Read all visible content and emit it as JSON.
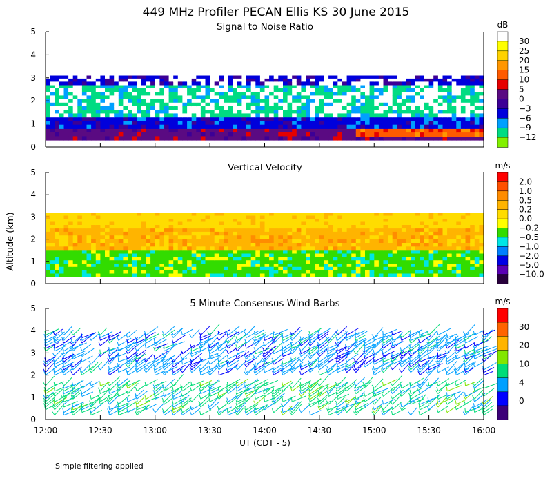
{
  "title": "449 MHz Profiler PECAN Ellis KS 30 June 2015",
  "ylabel": "Altitude (km)",
  "xlabel": "UT  (CDT - 5)",
  "footer": "Simple filtering applied",
  "x_ticks": [
    "12:00",
    "12:30",
    "13:00",
    "13:30",
    "14:00",
    "14:30",
    "15:00",
    "15:30",
    "16:00"
  ],
  "y_ticks": [
    "0",
    "1",
    "2",
    "3",
    "4",
    "5"
  ],
  "chart_data": [
    {
      "type": "heatmap",
      "title": "Signal to Noise Ratio",
      "x_range": [
        "12:00",
        "16:00"
      ],
      "ylim": [
        0,
        5
      ],
      "colorbar": {
        "unit": "dB",
        "labels": [
          "30",
          "25",
          "20",
          "15",
          "10",
          "5",
          "0",
          "−3",
          "−6",
          "−9",
          "−12"
        ],
        "colors": [
          "#ffffff",
          "#ffff00",
          "#ffd200",
          "#ff9600",
          "#ff5a00",
          "#e60000",
          "#5a0a82",
          "#3c0096",
          "#0000dc",
          "#00a0ff",
          "#00dc82",
          "#82f000"
        ]
      },
      "layers": [
        {
          "alt_km": [
            0.3,
            0.8
          ],
          "value_db": "0 to 5",
          "color": "#5a0a82"
        },
        {
          "alt_km": [
            0.45,
            0.8
          ],
          "from": "14:50",
          "to": "16:00",
          "value_db": "10 to 20",
          "color": "#ff5a00"
        },
        {
          "alt_km": [
            0.8,
            1.3
          ],
          "value_db": "-3 to 0",
          "color": "#0000dc"
        },
        {
          "alt_km": [
            1.3,
            2.7
          ],
          "value_db": "-12 to 30",
          "color": "#00dc82"
        },
        {
          "alt_km": [
            2.7,
            3.1
          ],
          "value_db": "-3 to 0",
          "color": "#0000dc"
        }
      ]
    },
    {
      "type": "heatmap",
      "title": "Vertical Velocity",
      "x_range": [
        "12:00",
        "16:00"
      ],
      "ylim": [
        0,
        5
      ],
      "colorbar": {
        "unit": "m/s",
        "labels": [
          "2.0",
          "1.0",
          "0.5",
          "0.2",
          "0.0",
          "−0.2",
          "−0.5",
          "−1.0",
          "−2.0",
          "−5.0",
          "−10.0"
        ],
        "colors": [
          "#ff0000",
          "#ff5000",
          "#ff8c00",
          "#ffb400",
          "#ffdc00",
          "#ffff00",
          "#32dc00",
          "#00e6e6",
          "#0080ff",
          "#0000e6",
          "#5a00b4",
          "#28003c"
        ]
      },
      "layers": [
        {
          "alt_km": [
            0.3,
            1.5
          ],
          "value_ms": "-0.5 to 0.2",
          "color": "#32dc00"
        },
        {
          "alt_km": [
            1.5,
            2.5
          ],
          "value_ms": "0.0 to 0.2",
          "color": "#ffb400"
        },
        {
          "alt_km": [
            2.5,
            3.2
          ],
          "value_ms": "0.0 to 0.2",
          "color": "#ffdc00"
        }
      ]
    },
    {
      "type": "scatter",
      "title": "5 Minute Consensus Wind Barbs",
      "x_range": [
        "12:00",
        "16:00"
      ],
      "ylim": [
        0,
        5
      ],
      "colorbar": {
        "unit": "m/s",
        "labels": [
          "30",
          "20",
          "10",
          "4",
          "0"
        ],
        "colors": [
          "#ff0000",
          "#ff6400",
          "#ffb400",
          "#82e600",
          "#00dc78",
          "#00a0ff",
          "#0000ff",
          "#3c0078"
        ]
      },
      "layers": [
        {
          "alt_km": [
            0.2,
            1.6
          ],
          "speed_ms": "4 to 10",
          "color": "#00dc78"
        },
        {
          "alt_km": [
            2.0,
            3.9
          ],
          "speed_ms": "0 to 10",
          "color": "#00a0ff"
        }
      ]
    }
  ]
}
